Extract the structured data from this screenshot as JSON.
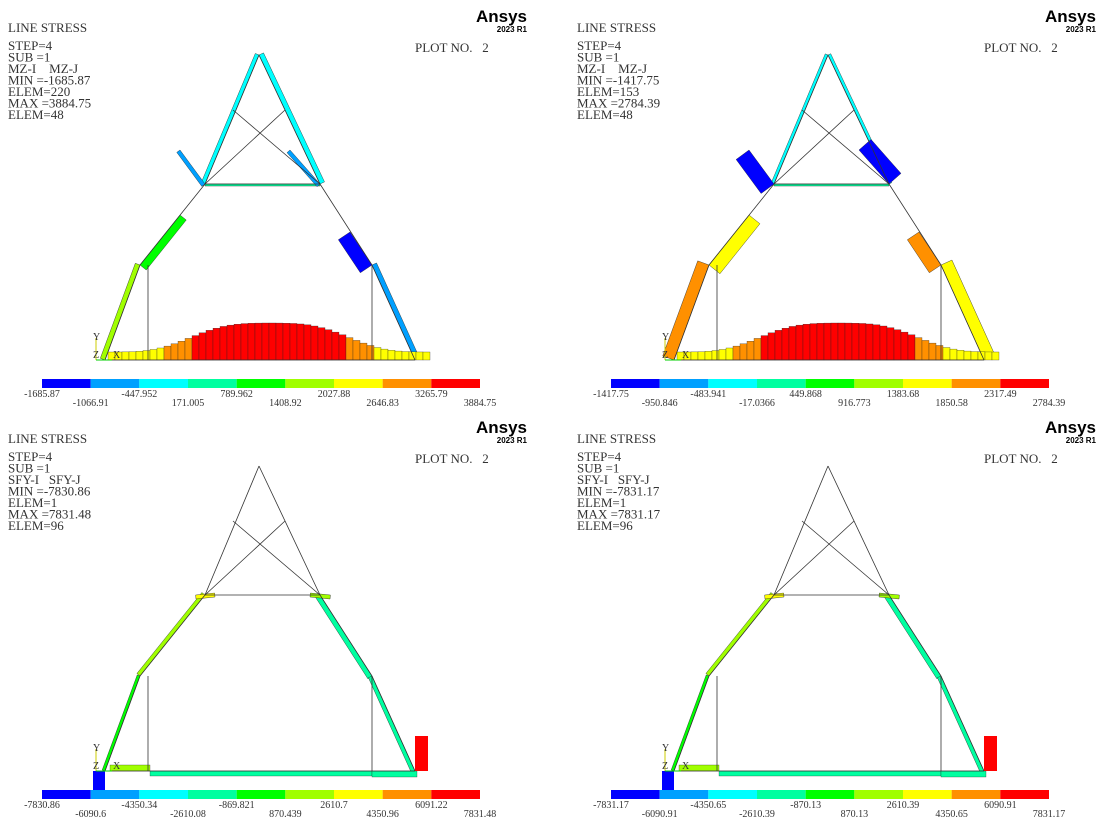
{
  "panels": [
    {
      "title": "LINE STRESS",
      "info": [
        "STEP=4",
        "SUB =1",
        "MZ-I    MZ-J",
        "MIN =-1685.87",
        "ELEM=220",
        "MAX =3884.75",
        "ELEM=48"
      ],
      "plot_no": "PLOT NO.   2",
      "brand": "Ansys",
      "version": "2023 R1",
      "triad": [
        "Y",
        "Z",
        "X"
      ],
      "legend": [
        "-1685.87",
        "-1066.91",
        "-447.952",
        "171.005",
        "789.962",
        "1408.92",
        "2027.88",
        "2646.83",
        "3265.79",
        "3884.75"
      ]
    },
    {
      "title": "LINE STRESS",
      "info": [
        "STEP=4",
        "SUB =1",
        "MZ-I    MZ-J",
        "MIN =-1417.75",
        "ELEM=153",
        "MAX =2784.39",
        "ELEM=48"
      ],
      "plot_no": "PLOT NO.   2",
      "brand": "Ansys",
      "version": "2023 R1",
      "triad": [
        "Y",
        "Z",
        "X"
      ],
      "legend": [
        "-1417.75",
        "-950.846",
        "-483.941",
        "-17.0366",
        "449.868",
        "916.773",
        "1383.68",
        "1850.58",
        "2317.49",
        "2784.39"
      ]
    },
    {
      "title": "LINE STRESS",
      "info": [
        "STEP=4",
        "SUB =1",
        "SFY-I   SFY-J",
        "MIN =-7830.86",
        "ELEM=1",
        "MAX =7831.48",
        "ELEM=96"
      ],
      "plot_no": "PLOT NO.   2",
      "brand": "Ansys",
      "version": "2023 R1",
      "triad": [
        "Y",
        "Z",
        "X"
      ],
      "legend": [
        "-7830.86",
        "-6090.6",
        "-4350.34",
        "-2610.08",
        "-869.821",
        "870.439",
        "2610.7",
        "4350.96",
        "6091.22",
        "7831.48"
      ]
    },
    {
      "title": "LINE STRESS",
      "info": [
        "STEP=4",
        "SUB =1",
        "SFY-I   SFY-J",
        "MIN =-7831.17",
        "ELEM=1",
        "MAX =7831.17",
        "ELEM=96"
      ],
      "plot_no": "PLOT NO.   2",
      "brand": "Ansys",
      "version": "2023 R1",
      "triad": [
        "Y",
        "Z",
        "X"
      ],
      "legend": [
        "-7831.17",
        "-6090.91",
        "-4350.65",
        "-2610.39",
        "-870.13",
        "870.13",
        "2610.39",
        "4350.65",
        "6090.91",
        "7831.17"
      ]
    }
  ]
}
